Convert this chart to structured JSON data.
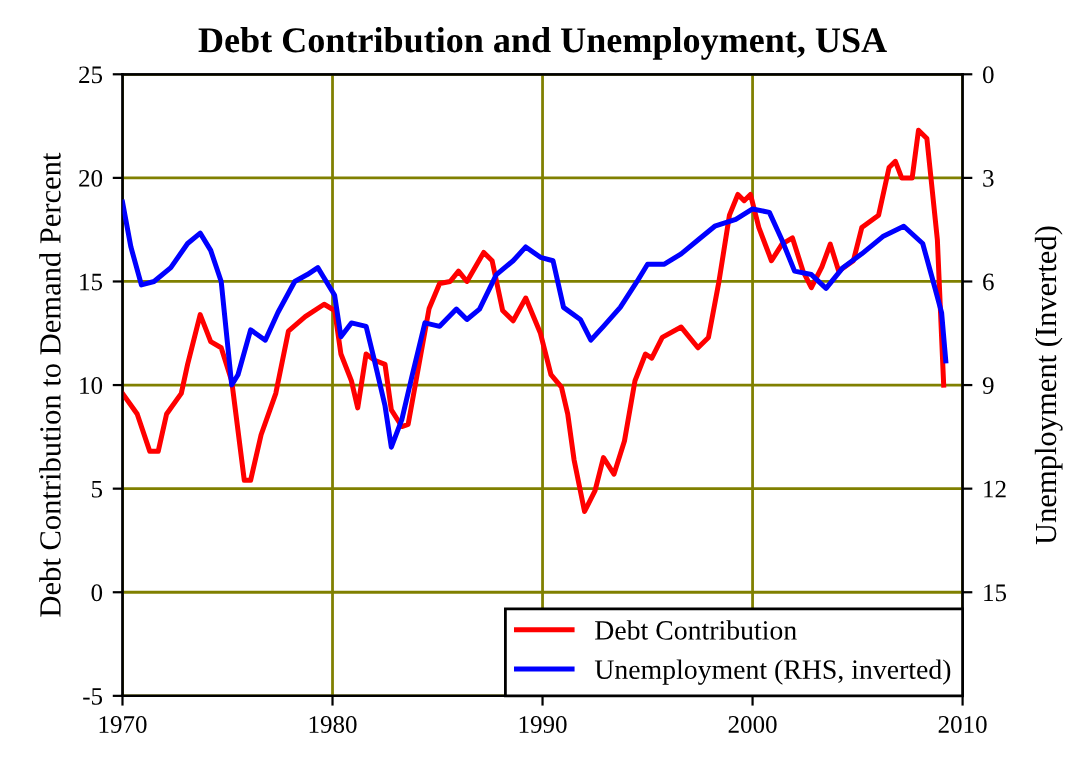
{
  "chart_data": {
    "type": "line",
    "title": "Debt Contribution and Unemployment, USA",
    "ylabel": "Debt Contribution to Demand Percent",
    "y2label": "Unemployment (Inverted)",
    "xlim": [
      1970,
      2010
    ],
    "xticks": [
      1970,
      1980,
      1990,
      2000,
      2010
    ],
    "ylim": [
      -5,
      25
    ],
    "yticks": [
      -5,
      0,
      5,
      10,
      15,
      20,
      25
    ],
    "y2lim": [
      18,
      0
    ],
    "y2ticks": [
      0,
      3,
      6,
      9,
      12,
      15
    ],
    "grid": true,
    "legend": "lower right",
    "line_style": "solid",
    "series": [
      {
        "name": "Debt Contribution",
        "color": "#ff0000",
        "x": [
          1970.0,
          1970.7,
          1971.3,
          1971.7,
          1972.1,
          1972.8,
          1973.1,
          1973.7,
          1974.2,
          1974.7,
          1975.2,
          1975.8,
          1976.1,
          1976.6,
          1977.3,
          1977.9,
          1978.7,
          1979.6,
          1980.1,
          1980.4,
          1980.9,
          1981.2,
          1981.6,
          1982.0,
          1982.5,
          1982.8,
          1983.3,
          1983.6,
          1984.1,
          1984.6,
          1985.1,
          1985.6,
          1986.0,
          1986.4,
          1987.2,
          1987.6,
          1988.1,
          1988.6,
          1989.2,
          1989.9,
          1990.4,
          1990.9,
          1991.2,
          1991.5,
          1992.0,
          1992.5,
          1992.9,
          1993.4,
          1993.9,
          1994.4,
          1994.9,
          1995.2,
          1995.7,
          1996.6,
          1997.4,
          1997.9,
          1998.4,
          1998.9,
          1999.3,
          1999.6,
          1999.9,
          2000.3,
          2000.9,
          2001.4,
          2001.9,
          2002.4,
          2002.8,
          2003.3,
          2003.7,
          2004.1,
          2004.8,
          2005.2,
          2006.0,
          2006.5,
          2006.8,
          2007.1,
          2007.6,
          2007.9,
          2008.3,
          2008.8,
          2009.1
        ],
        "values": [
          9.6,
          8.6,
          6.8,
          6.8,
          8.6,
          9.6,
          11.0,
          13.4,
          12.1,
          11.8,
          10.2,
          5.4,
          5.4,
          7.6,
          9.6,
          12.6,
          13.3,
          13.9,
          13.6,
          11.5,
          10.2,
          8.9,
          11.5,
          11.2,
          11.0,
          8.8,
          8.0,
          8.1,
          10.9,
          13.7,
          14.9,
          15.0,
          15.5,
          15.0,
          16.4,
          16.0,
          13.6,
          13.1,
          14.2,
          12.5,
          10.5,
          9.9,
          8.6,
          6.4,
          3.9,
          4.9,
          6.5,
          5.7,
          7.3,
          10.2,
          11.5,
          11.3,
          12.3,
          12.8,
          11.8,
          12.3,
          15.0,
          18.2,
          19.2,
          18.9,
          19.2,
          17.6,
          16.0,
          16.8,
          17.1,
          15.5,
          14.7,
          15.7,
          16.8,
          15.5,
          16.0,
          17.6,
          18.2,
          20.5,
          20.8,
          20.0,
          20.0,
          22.3,
          21.9,
          17.0,
          10.0
        ]
      },
      {
        "name": "Unemployment (RHS, inverted)",
        "color": "#0000ff",
        "axis": "y2",
        "x": [
          1970.0,
          1970.4,
          1970.9,
          1971.5,
          1972.3,
          1973.1,
          1973.7,
          1974.2,
          1974.7,
          1975.2,
          1975.5,
          1976.1,
          1976.8,
          1977.4,
          1978.2,
          1978.8,
          1979.3,
          1979.6,
          1980.1,
          1980.4,
          1980.9,
          1981.6,
          1982.0,
          1982.5,
          1982.8,
          1983.3,
          1983.8,
          1984.4,
          1985.1,
          1985.9,
          1986.4,
          1987.0,
          1987.8,
          1988.6,
          1989.2,
          1989.9,
          1990.5,
          1991.0,
          1991.8,
          1992.3,
          1992.9,
          1993.7,
          1994.5,
          1995.0,
          1995.8,
          1996.6,
          1997.4,
          1998.2,
          1999.2,
          2000.0,
          2000.8,
          2001.4,
          2002.0,
          2002.8,
          2003.5,
          2004.3,
          2005.2,
          2006.2,
          2007.2,
          2008.1,
          2008.6,
          2009.0,
          2009.2
        ],
        "values": [
          3.7,
          5.0,
          6.1,
          6.0,
          5.6,
          4.9,
          4.6,
          5.1,
          6.0,
          9.0,
          8.7,
          7.4,
          7.7,
          6.9,
          6.0,
          5.8,
          5.6,
          5.9,
          6.4,
          7.6,
          7.2,
          7.3,
          8.3,
          9.6,
          10.8,
          10.0,
          8.7,
          7.2,
          7.3,
          6.8,
          7.1,
          6.8,
          5.8,
          5.4,
          5.0,
          5.3,
          5.4,
          6.75,
          7.1,
          7.7,
          7.3,
          6.75,
          6.0,
          5.5,
          5.5,
          5.2,
          4.8,
          4.4,
          4.2,
          3.9,
          4.0,
          4.8,
          5.7,
          5.8,
          6.2,
          5.6,
          5.2,
          4.7,
          4.4,
          4.9,
          6.0,
          6.9,
          8.3
        ]
      }
    ]
  }
}
